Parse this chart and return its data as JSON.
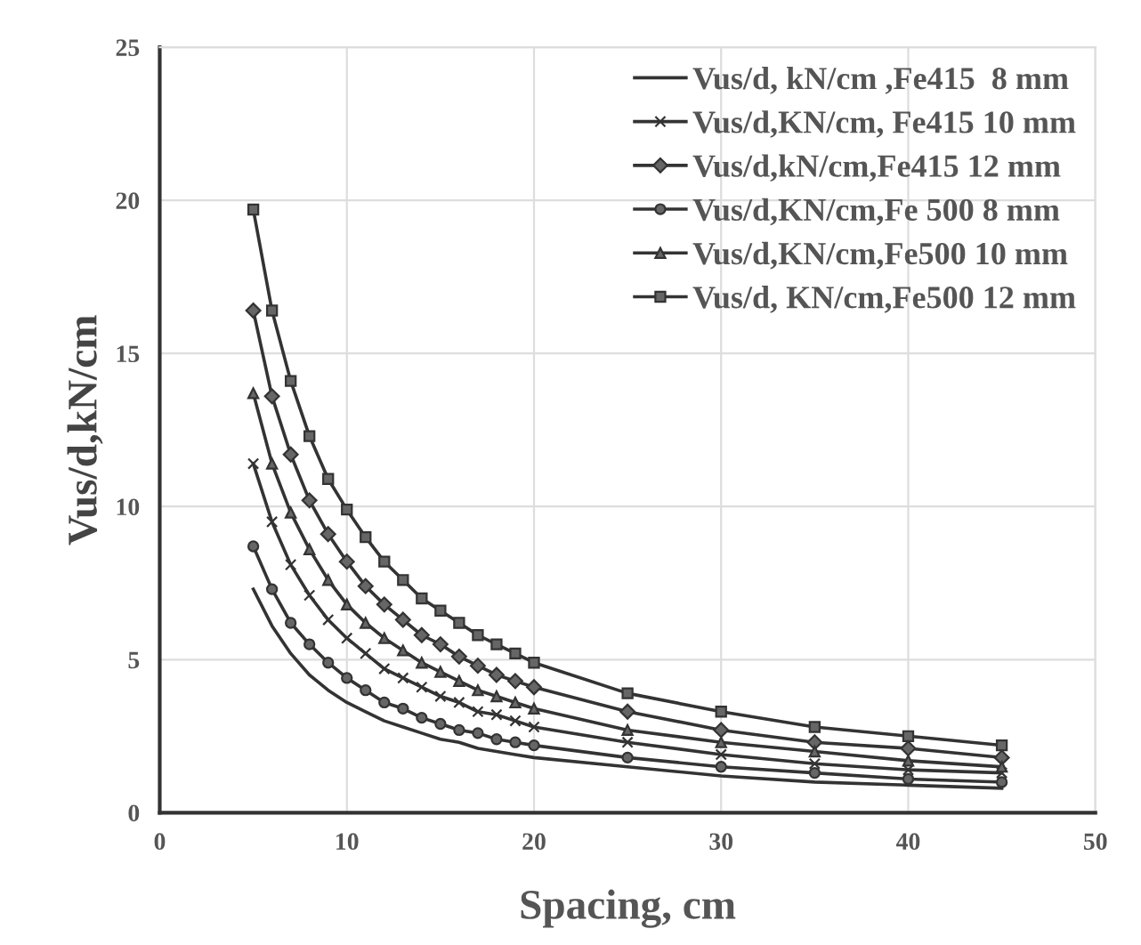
{
  "chart_data": {
    "type": "line",
    "xlabel": "Spacing, cm",
    "ylabel": "Vus/d,kN/cm",
    "x": [
      5,
      6,
      7,
      8,
      9,
      10,
      11,
      12,
      13,
      14,
      15,
      16,
      17,
      18,
      19,
      20,
      25,
      30,
      35,
      40,
      45
    ],
    "xlim": [
      0,
      50
    ],
    "xticks": [
      0,
      10,
      20,
      30,
      40,
      50
    ],
    "ylim": [
      0,
      25
    ],
    "yticks": [
      0,
      5,
      10,
      15,
      20,
      25
    ],
    "grid": true,
    "legend": "top right",
    "line_style": "solid",
    "series": [
      {
        "name": "Vus/d, kN/cm ,Fe415  8 mm",
        "color": "#333333",
        "marker": "none",
        "values": [
          7.3,
          6.1,
          5.2,
          4.5,
          4.0,
          3.6,
          3.3,
          3.0,
          2.8,
          2.6,
          2.4,
          2.3,
          2.1,
          2.0,
          1.9,
          1.8,
          1.5,
          1.2,
          1.0,
          0.9,
          0.8
        ]
      },
      {
        "name": "Vus/d,KN/cm, Fe415 10 mm",
        "color": "#333333",
        "marker": "cross",
        "values": [
          11.4,
          9.5,
          8.1,
          7.1,
          6.3,
          5.7,
          5.2,
          4.7,
          4.4,
          4.1,
          3.8,
          3.6,
          3.3,
          3.2,
          3.0,
          2.8,
          2.3,
          1.9,
          1.6,
          1.4,
          1.3
        ]
      },
      {
        "name": "Vus/d,kN/cm,Fe415 12 mm",
        "color": "#333333",
        "marker": "diamond",
        "values": [
          16.4,
          13.6,
          11.7,
          10.2,
          9.1,
          8.2,
          7.4,
          6.8,
          6.3,
          5.8,
          5.5,
          5.1,
          4.8,
          4.5,
          4.3,
          4.1,
          3.3,
          2.7,
          2.3,
          2.1,
          1.8
        ]
      },
      {
        "name": "Vus/d,KN/cm,Fe 500 8 mm",
        "color": "#333333",
        "marker": "circle",
        "values": [
          8.7,
          7.3,
          6.2,
          5.5,
          4.9,
          4.4,
          4.0,
          3.6,
          3.4,
          3.1,
          2.9,
          2.7,
          2.6,
          2.4,
          2.3,
          2.2,
          1.8,
          1.5,
          1.3,
          1.1,
          1.0
        ]
      },
      {
        "name": "Vus/d,KN/cm,Fe500 10 mm",
        "color": "#333333",
        "marker": "triangle",
        "values": [
          13.7,
          11.4,
          9.8,
          8.6,
          7.6,
          6.8,
          6.2,
          5.7,
          5.3,
          4.9,
          4.6,
          4.3,
          4.0,
          3.8,
          3.6,
          3.4,
          2.7,
          2.3,
          2.0,
          1.7,
          1.5
        ]
      },
      {
        "name": "Vus/d, KN/cm,Fe500 12 mm",
        "color": "#333333",
        "marker": "square",
        "values": [
          19.7,
          16.4,
          14.1,
          12.3,
          10.9,
          9.9,
          9.0,
          8.2,
          7.6,
          7.0,
          6.6,
          6.2,
          5.8,
          5.5,
          5.2,
          4.9,
          3.9,
          3.3,
          2.8,
          2.5,
          2.2
        ]
      }
    ]
  }
}
